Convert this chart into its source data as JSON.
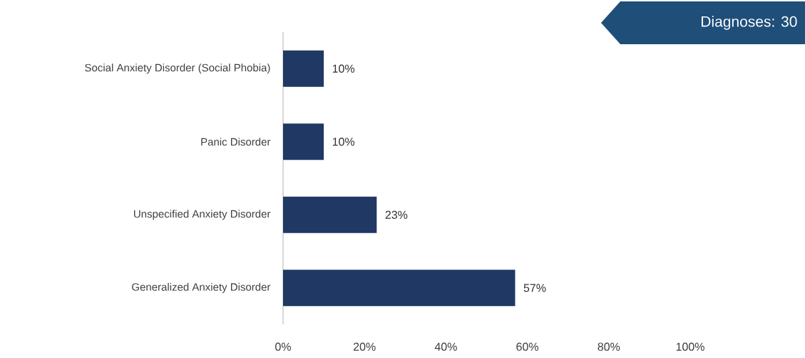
{
  "chart_data": {
    "type": "bar",
    "orientation": "horizontal",
    "categories": [
      "Social Anxiety Disorder (Social Phobia)",
      "Panic Disorder",
      "Unspecified Anxiety Disorder",
      "Generalized Anxiety Disorder"
    ],
    "values": [
      10,
      10,
      23,
      57
    ],
    "value_labels": [
      "10%",
      "10%",
      "23%",
      "57%"
    ],
    "color": "#203864",
    "xlim": [
      0,
      100
    ],
    "xticks": [
      {
        "value": 0,
        "label": "0%"
      },
      {
        "value": 20,
        "label": "20%"
      },
      {
        "value": 40,
        "label": "40%"
      },
      {
        "value": 60,
        "label": "60%"
      },
      {
        "value": 80,
        "label": "80%"
      },
      {
        "value": 100,
        "label": "100%"
      }
    ],
    "annotations": [
      "Diagnoses: 30"
    ]
  }
}
